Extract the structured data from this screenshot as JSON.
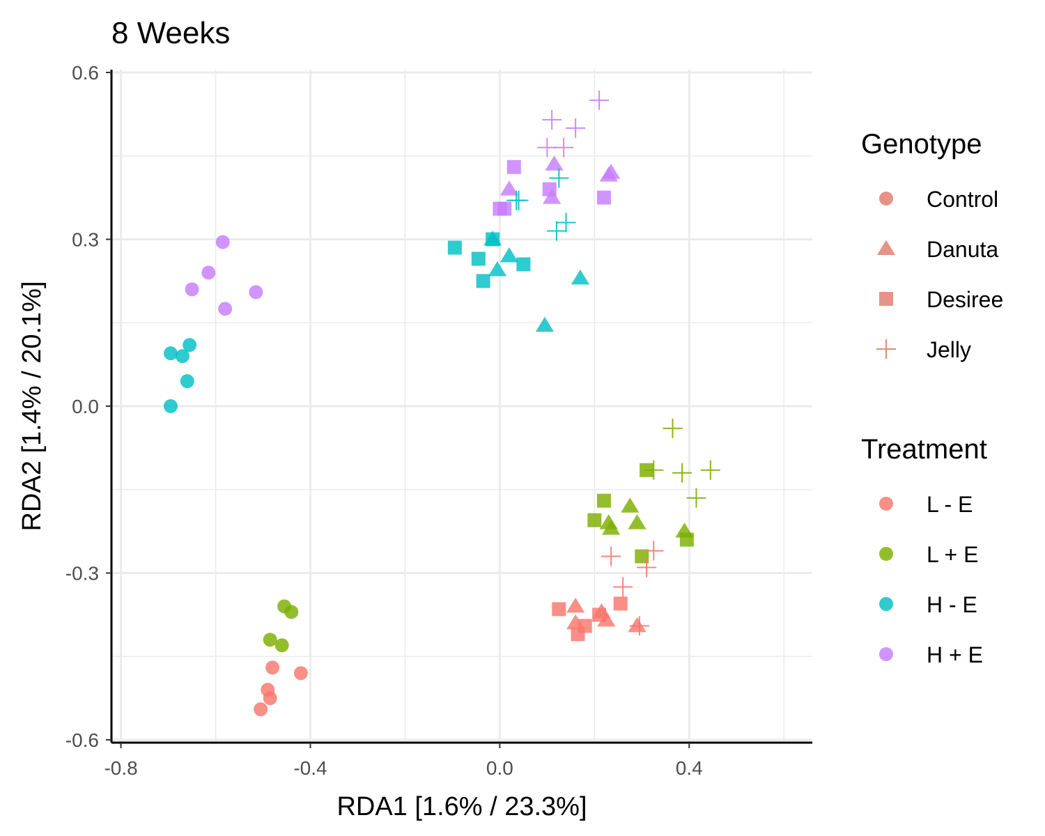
{
  "chart_data": {
    "type": "scatter",
    "title": "8 Weeks",
    "xlabel": "RDA1 [1.6% / 23.3%]",
    "ylabel": "RDA2 [1.4% / 20.1%]",
    "xlim": [
      -0.82,
      0.66
    ],
    "ylim": [
      -0.605,
      0.605
    ],
    "x_ticks": [
      -0.8,
      -0.4,
      0.0,
      0.4
    ],
    "x_tick_labels": [
      "-0.8",
      "-0.4",
      "0.0",
      "0.4"
    ],
    "y_ticks": [
      0.6,
      0.3,
      0.0,
      -0.3,
      -0.6
    ],
    "y_tick_labels": [
      "0.6",
      "0.3",
      "0.0",
      "-0.3",
      "-0.6"
    ],
    "x_minor": [
      -0.6,
      -0.2,
      0.2,
      0.6
    ],
    "y_minor": [
      0.45,
      0.15,
      -0.15,
      -0.45
    ],
    "grid": true,
    "legend_position": "right",
    "legends": [
      {
        "title": "Genotype",
        "items": [
          {
            "label": "Control",
            "shape": "circle"
          },
          {
            "label": "Danuta",
            "shape": "triangle"
          },
          {
            "label": "Desiree",
            "shape": "square"
          },
          {
            "label": "Jelly",
            "shape": "plus"
          }
        ]
      },
      {
        "title": "Treatment",
        "items": [
          {
            "label": "L - E",
            "color": "#F8766D"
          },
          {
            "label": "L + E",
            "color": "#7CAE00"
          },
          {
            "label": "H - E",
            "color": "#00BFC4"
          },
          {
            "label": "H + E",
            "color": "#C77CFF"
          }
        ]
      }
    ],
    "genotype_legend_color": "#E17B6C",
    "series": [
      {
        "genotype": "Control",
        "treatment": "L - E",
        "points": [
          [
            -0.48,
            -0.47
          ],
          [
            -0.42,
            -0.48
          ],
          [
            -0.49,
            -0.51
          ],
          [
            -0.485,
            -0.525
          ],
          [
            -0.505,
            -0.545
          ]
        ]
      },
      {
        "genotype": "Control",
        "treatment": "L + E",
        "points": [
          [
            -0.455,
            -0.36
          ],
          [
            -0.44,
            -0.37
          ],
          [
            -0.485,
            -0.42
          ],
          [
            -0.46,
            -0.43
          ]
        ]
      },
      {
        "genotype": "Control",
        "treatment": "H - E",
        "points": [
          [
            -0.695,
            0.095
          ],
          [
            -0.67,
            0.09
          ],
          [
            -0.655,
            0.11
          ],
          [
            -0.66,
            0.045
          ],
          [
            -0.695,
            0.0
          ]
        ]
      },
      {
        "genotype": "Control",
        "treatment": "H + E",
        "points": [
          [
            -0.585,
            0.295
          ],
          [
            -0.615,
            0.24
          ],
          [
            -0.65,
            0.21
          ],
          [
            -0.58,
            0.175
          ],
          [
            -0.515,
            0.205
          ]
        ]
      },
      {
        "genotype": "Danuta",
        "treatment": "L - E",
        "points": [
          [
            0.16,
            -0.36
          ],
          [
            0.215,
            -0.37
          ],
          [
            0.16,
            -0.39
          ],
          [
            0.225,
            -0.385
          ],
          [
            0.29,
            -0.395
          ]
        ]
      },
      {
        "genotype": "Danuta",
        "treatment": "L + E",
        "points": [
          [
            0.275,
            -0.18
          ],
          [
            0.23,
            -0.21
          ],
          [
            0.29,
            -0.21
          ],
          [
            0.235,
            -0.22
          ],
          [
            0.39,
            -0.225
          ]
        ]
      },
      {
        "genotype": "Danuta",
        "treatment": "H - E",
        "points": [
          [
            -0.015,
            0.3
          ],
          [
            0.02,
            0.27
          ],
          [
            -0.005,
            0.245
          ],
          [
            0.17,
            0.23
          ],
          [
            0.095,
            0.145
          ]
        ]
      },
      {
        "genotype": "Danuta",
        "treatment": "H + E",
        "points": [
          [
            0.115,
            0.435
          ],
          [
            0.02,
            0.39
          ],
          [
            0.11,
            0.375
          ],
          [
            0.235,
            0.42
          ],
          [
            0.23,
            0.415
          ]
        ]
      },
      {
        "genotype": "Desiree",
        "treatment": "L - E",
        "points": [
          [
            0.125,
            -0.365
          ],
          [
            0.255,
            -0.355
          ],
          [
            0.18,
            -0.395
          ],
          [
            0.21,
            -0.375
          ],
          [
            0.165,
            -0.41
          ]
        ]
      },
      {
        "genotype": "Desiree",
        "treatment": "L + E",
        "points": [
          [
            0.31,
            -0.115
          ],
          [
            0.22,
            -0.17
          ],
          [
            0.2,
            -0.205
          ],
          [
            0.3,
            -0.27
          ],
          [
            0.395,
            -0.24
          ]
        ]
      },
      {
        "genotype": "Desiree",
        "treatment": "H - E",
        "points": [
          [
            -0.095,
            0.285
          ],
          [
            -0.045,
            0.265
          ],
          [
            -0.015,
            0.3
          ],
          [
            0.05,
            0.255
          ],
          [
            -0.035,
            0.225
          ]
        ]
      },
      {
        "genotype": "Desiree",
        "treatment": "H + E",
        "points": [
          [
            0.03,
            0.43
          ],
          [
            0.105,
            0.39
          ],
          [
            0.0,
            0.355
          ],
          [
            0.01,
            0.355
          ],
          [
            0.22,
            0.375
          ]
        ]
      },
      {
        "genotype": "Jelly",
        "treatment": "L - E",
        "points": [
          [
            0.235,
            -0.27
          ],
          [
            0.325,
            -0.26
          ],
          [
            0.31,
            -0.29
          ],
          [
            0.26,
            -0.325
          ],
          [
            0.295,
            -0.395
          ]
        ]
      },
      {
        "genotype": "Jelly",
        "treatment": "L + E",
        "points": [
          [
            0.365,
            -0.04
          ],
          [
            0.325,
            -0.115
          ],
          [
            0.385,
            -0.12
          ],
          [
            0.445,
            -0.115
          ],
          [
            0.415,
            -0.165
          ]
        ]
      },
      {
        "genotype": "Jelly",
        "treatment": "H - E",
        "points": [
          [
            0.125,
            0.41
          ],
          [
            0.04,
            0.37
          ],
          [
            0.035,
            0.37
          ],
          [
            0.14,
            0.33
          ],
          [
            0.12,
            0.315
          ]
        ]
      },
      {
        "genotype": "Jelly",
        "treatment": "H + E",
        "points": [
          [
            0.21,
            0.55
          ],
          [
            0.11,
            0.515
          ],
          [
            0.16,
            0.5
          ],
          [
            0.1,
            0.465
          ],
          [
            0.135,
            0.465
          ]
        ]
      }
    ]
  }
}
